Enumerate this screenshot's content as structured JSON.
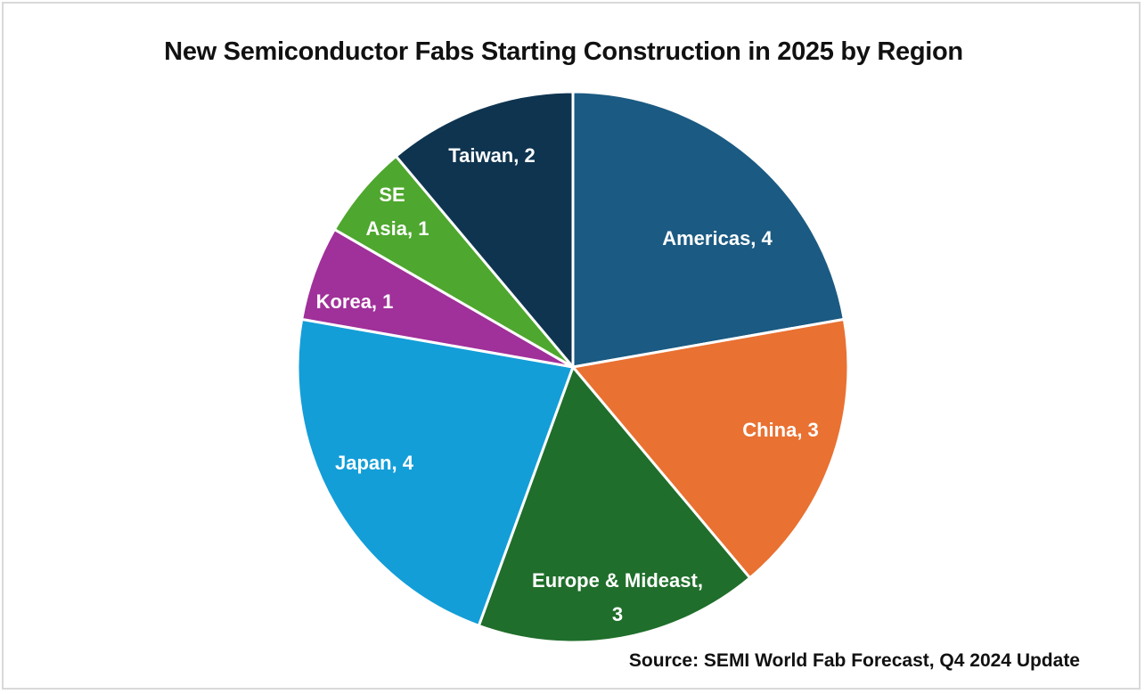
{
  "chart_data": {
    "type": "pie",
    "title": "New Semiconductor Fabs Starting Construction in 2025 by Region",
    "categories": [
      "Americas",
      "China",
      "Europe & Mideast",
      "Japan",
      "Korea",
      "SE Asia",
      "Taiwan"
    ],
    "values": [
      4,
      3,
      3,
      4,
      1,
      1,
      2
    ],
    "colors": [
      "#1b5a82",
      "#e97132",
      "#1f6e2b",
      "#139ed8",
      "#a0309a",
      "#4ea72e",
      "#0e3450"
    ],
    "data_labels": [
      "Americas, 4",
      "China, 3",
      "Europe & Mideast, 3",
      "Japan, 4",
      "Korea, 1",
      "SE Asia, 1",
      "Taiwan, 2"
    ],
    "start_angle": "12 o'clock, clockwise",
    "legend": "none (data labels on slices)",
    "source": "Source: SEMI World Fab Forecast, Q4 2024 Update"
  },
  "labels": {
    "americas": "Americas, 4",
    "china": "China, 3",
    "europe_1": "Europe & Mideast,",
    "europe_2": "3",
    "japan": "Japan, 4",
    "korea": "Korea, 1",
    "seasia_1": "SE",
    "seasia_2": "Asia, 1",
    "taiwan": "Taiwan, 2"
  }
}
